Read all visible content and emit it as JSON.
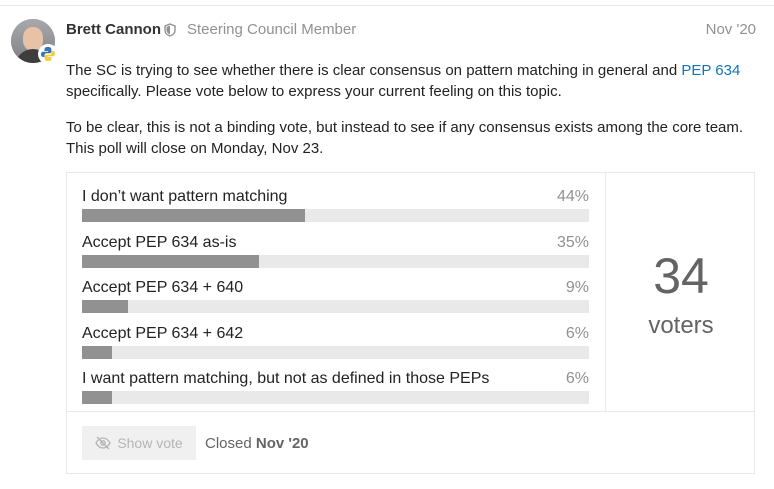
{
  "post": {
    "author": "Brett Cannon",
    "user_title": "Steering Council Member",
    "date": "Nov '20",
    "para1_a": "The SC is trying to see whether there is clear consensus on pattern matching in general and ",
    "para1_link": "PEP 634",
    "para1_b": " specifically. Please vote below to express your current feeling on this topic.",
    "para2": "To be clear, this is not a binding vote, but instead to see if any consensus exists among the core team. This poll will close on Monday, Nov 23."
  },
  "poll": {
    "options": [
      {
        "label": "I don’t want pattern matching",
        "percent": "44%",
        "value": 44
      },
      {
        "label": "Accept PEP 634 as-is",
        "percent": "35%",
        "value": 35
      },
      {
        "label": "Accept PEP 634 + 640",
        "percent": "9%",
        "value": 9
      },
      {
        "label": "Accept PEP 634 + 642",
        "percent": "6%",
        "value": 6
      },
      {
        "label": "I want pattern matching, but not as defined in those PEPs",
        "percent": "6%",
        "value": 6
      }
    ],
    "voters_count": "34",
    "voters_label": "voters",
    "show_vote_label": "Show vote",
    "closed_label": "Closed",
    "closed_date": "Nov '20"
  },
  "colors": {
    "link": "#0e76bd",
    "bar_fill": "#919191",
    "bar_track": "#e9e9e9",
    "python_blue": "#3a75b0",
    "python_yellow": "#f5cf3b"
  },
  "icons": {
    "user_badge": "python-logo-icon",
    "title_badge": "shield-icon",
    "show_vote": "eye-slash-icon"
  }
}
